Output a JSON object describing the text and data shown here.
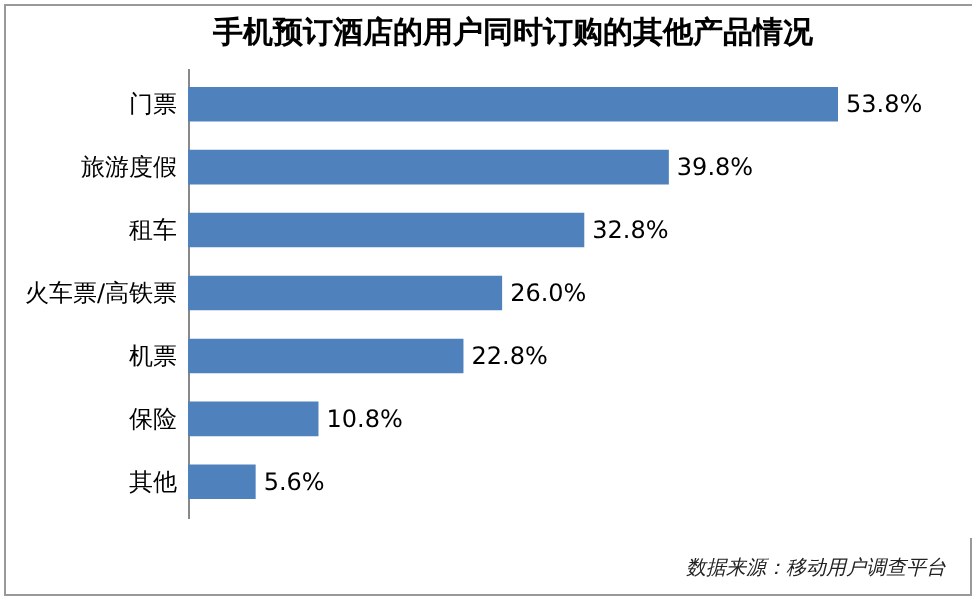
{
  "chart_data": {
    "type": "bar",
    "orientation": "horizontal",
    "title": "手机预订酒店的用户同时订购的其他产品情况",
    "categories": [
      "门票",
      "旅游度假",
      "租车",
      "火车票/高铁票",
      "机票",
      "保险",
      "其他"
    ],
    "values": [
      53.8,
      39.8,
      32.8,
      26.0,
      22.8,
      10.8,
      5.6
    ],
    "value_labels": [
      "53.8%",
      "39.8%",
      "32.8%",
      "26.0%",
      "22.8%",
      "10.8%",
      "5.6%"
    ],
    "color": "#4f81bd",
    "annotations": [
      "数据来源：移动用户调查平台"
    ]
  }
}
